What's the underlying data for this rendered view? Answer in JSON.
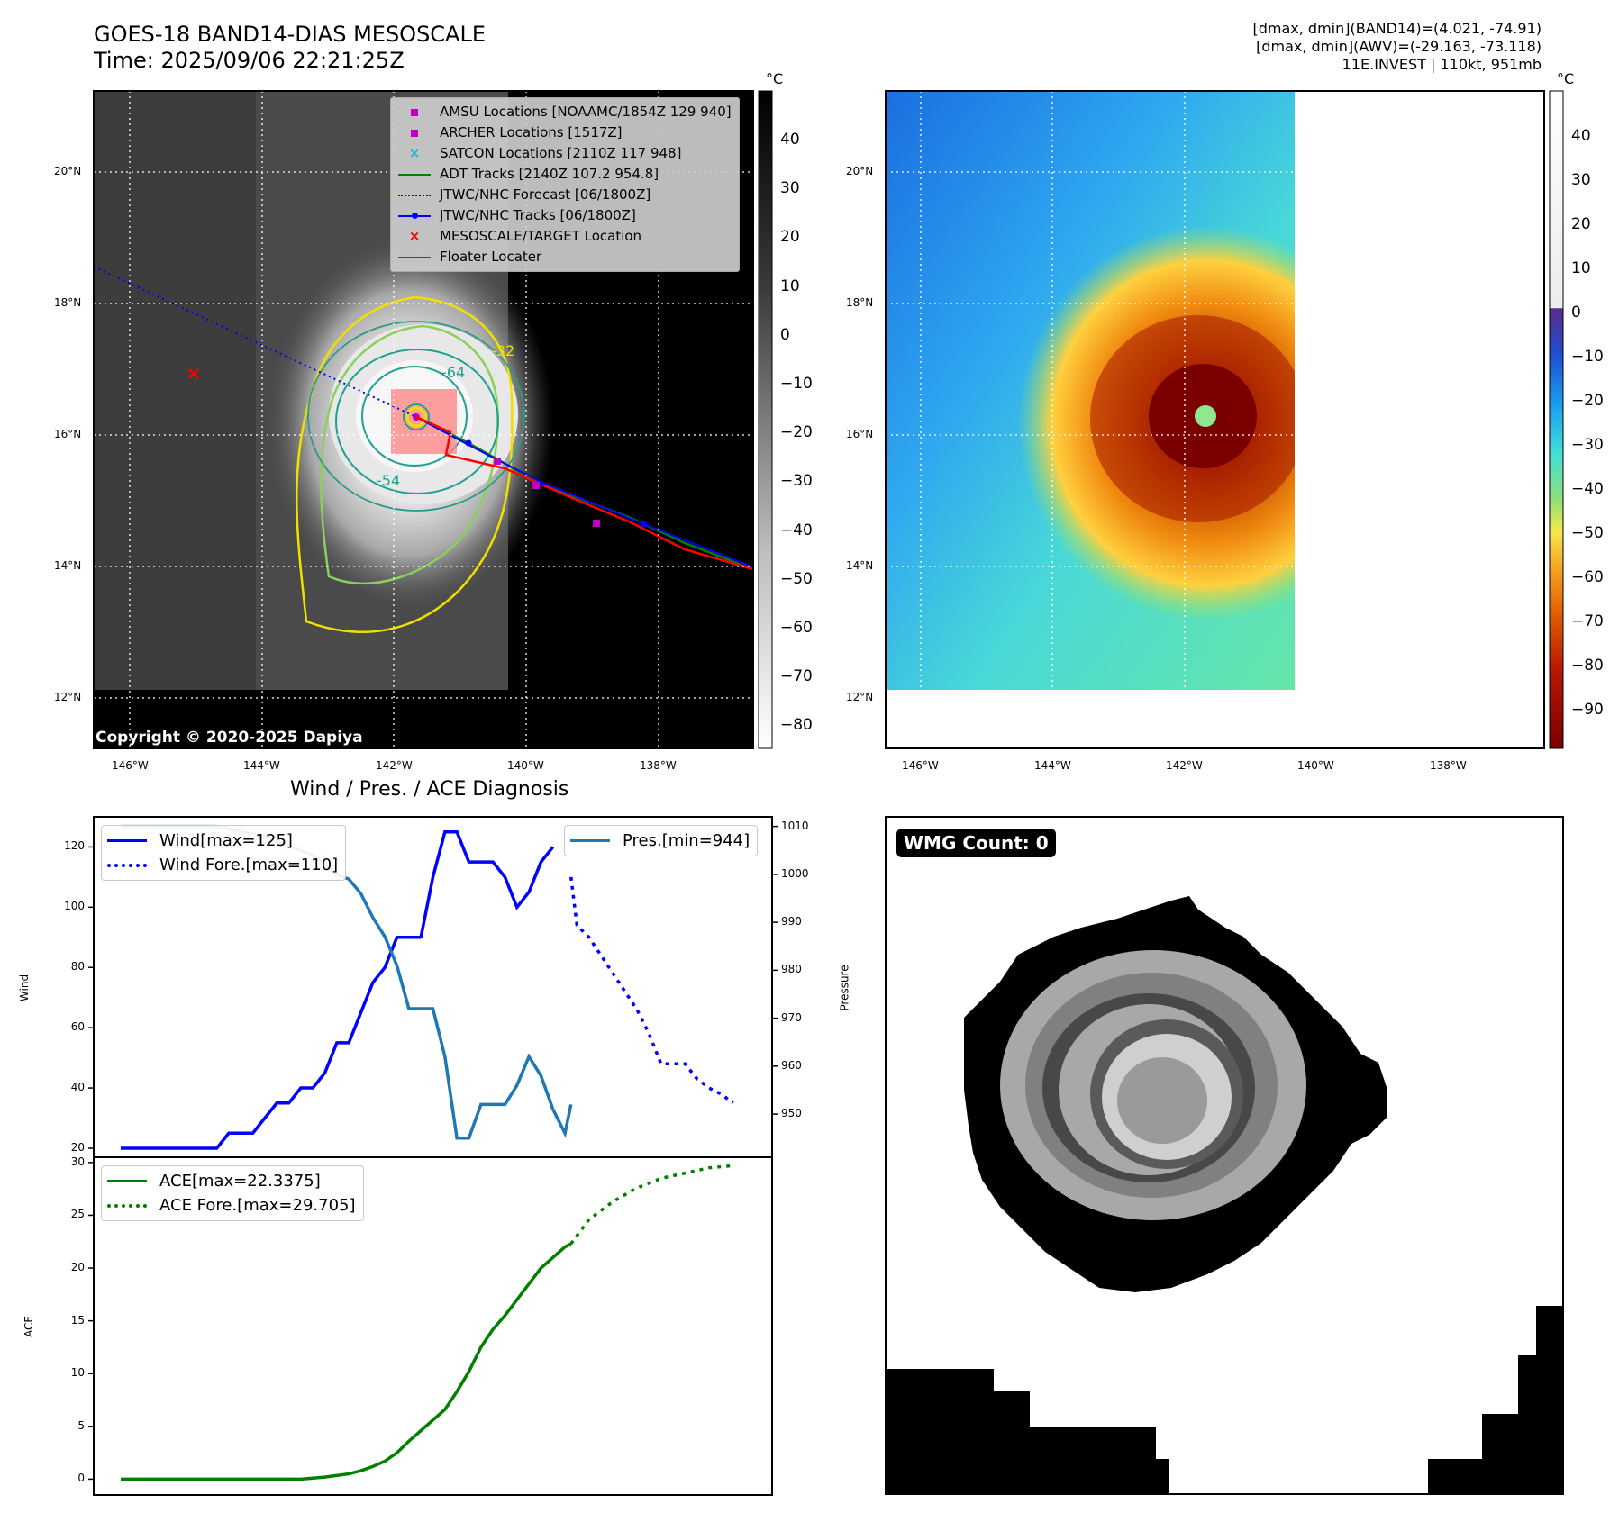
{
  "header": {
    "title_line1": "GOES-18 BAND14-DIAS MESOSCALE",
    "title_line2": "Time: 2025/09/06 22:21:25Z",
    "stats_line1": "[dmax, dmin](BAND14)=(4.021, -74.91)",
    "stats_line2": "[dmax, dmin](AWV)=(-29.163, -73.118)",
    "stats_line3": "11E.INVEST | 110kt, 951mb"
  },
  "map_panel": {
    "lat_labels": [
      "20°N",
      "18°N",
      "16°N",
      "14°N",
      "12°N"
    ],
    "lon_labels": [
      "146°W",
      "144°W",
      "142°W",
      "140°W",
      "138°W"
    ],
    "contour_labels": [
      "-64",
      "-54",
      "-32"
    ],
    "copyright": "Copyright © 2020-2025 Dapiya",
    "legend": [
      {
        "label": "AMSU Locations [NOAAMC/1854Z 129 940]",
        "icon": "square-marker",
        "color": "#c000c0"
      },
      {
        "label": "ARCHER Locations [1517Z]",
        "icon": "square-marker",
        "color": "#c000c0"
      },
      {
        "label": "SATCON Locations [2110Z 117 948]",
        "icon": "x-marker",
        "color": "#17becf"
      },
      {
        "label": "ADT Tracks [2140Z 107.2 954.8]",
        "icon": "solid-line",
        "color": "#008000"
      },
      {
        "label": "JTWC/NHC Forecast [06/1800Z]",
        "icon": "dotted-line",
        "color": "#0000ff"
      },
      {
        "label": "JTWC/NHC Tracks [06/1800Z]",
        "icon": "line-dot",
        "color": "#0000ff"
      },
      {
        "label": "MESOSCALE/TARGET Location",
        "icon": "x-marker",
        "color": "#ff0000"
      },
      {
        "label": "Floater Locater",
        "icon": "solid-line",
        "color": "#ff0000"
      }
    ],
    "colorbar_unit": "°C",
    "colorbar_ticks": [
      "40",
      "30",
      "20",
      "10",
      "0",
      "−10",
      "−20",
      "−30",
      "−40",
      "−50",
      "−60",
      "−70",
      "−80"
    ]
  },
  "awv_panel": {
    "lat_labels": [
      "20°N",
      "18°N",
      "16°N",
      "14°N",
      "12°N"
    ],
    "lon_labels": [
      "146°W",
      "144°W",
      "142°W",
      "140°W",
      "138°W"
    ],
    "colorbar_unit": "°C",
    "colorbar_ticks": [
      "40",
      "30",
      "20",
      "10",
      "0",
      "−10",
      "−20",
      "−30",
      "−40",
      "−50",
      "−60",
      "−70",
      "−80",
      "−90"
    ]
  },
  "wmg_panel": {
    "badge": "WMG Count: 0"
  },
  "chart_data": [
    {
      "type": "line",
      "title": "Wind / Pres. / ACE Diagnosis",
      "xlabel": "",
      "ylabel": "Wind",
      "ylabel_right": "Pressure",
      "ylim": [
        17,
        130
      ],
      "ylim_right": [
        941,
        1012
      ],
      "y_ticks": [
        "120",
        "100",
        "80",
        "60",
        "40",
        "20"
      ],
      "y_ticks_right": [
        "1010",
        "1000",
        "990",
        "980",
        "970",
        "960",
        "950"
      ],
      "series": [
        {
          "name": "Wind[max=125]",
          "axis": "left",
          "color": "#0000ff",
          "style": "solid",
          "x": [
            0,
            1,
            2,
            3,
            4,
            5,
            6,
            7,
            8,
            9,
            10,
            11,
            12,
            13,
            14,
            15,
            16,
            17,
            18,
            19,
            20,
            21,
            22,
            23,
            24,
            25
          ],
          "values": [
            20,
            20,
            20,
            20,
            20,
            20,
            20,
            20,
            20,
            25,
            25,
            25,
            30,
            35,
            35,
            40,
            40,
            45,
            55,
            55,
            65,
            75,
            80,
            90,
            90,
            90
          ]
        },
        {
          "name": "Wind[max=125] (cont.)",
          "axis": "left",
          "color": "#0000ff",
          "style": "solid",
          "x": [
            25,
            26,
            27,
            28,
            29,
            30,
            31,
            32,
            33,
            34,
            35,
            36
          ],
          "values": [
            90,
            110,
            125,
            125,
            115,
            115,
            115,
            110,
            100,
            105,
            115,
            120
          ]
        },
        {
          "name": "Wind Fore.[max=110]",
          "axis": "left",
          "color": "#0000ff",
          "style": "dotted",
          "x": [
            37.5,
            38,
            39,
            40,
            41,
            42,
            43,
            44,
            45,
            46,
            47,
            48,
            49,
            50,
            51
          ],
          "values": [
            110,
            94,
            90,
            84,
            78,
            72,
            66,
            58,
            48,
            48,
            48,
            43,
            40,
            38,
            35
          ]
        },
        {
          "name": "Pres.[min=944]",
          "axis": "right",
          "color": "#1f77b4",
          "style": "solid",
          "x": [
            0,
            4,
            8,
            10,
            12,
            14,
            16,
            18,
            19,
            20,
            21,
            22,
            23,
            24,
            25,
            26,
            27,
            28,
            29,
            30,
            31,
            32,
            33,
            34,
            35,
            36,
            37,
            37.5
          ],
          "values": [
            1010,
            1010,
            1010,
            1009,
            1008,
            1006,
            1004,
            1000,
            999,
            996,
            991,
            987,
            981,
            972,
            972,
            972,
            962,
            945,
            945,
            952,
            952,
            952,
            956,
            962,
            958,
            951,
            946,
            952
          ]
        }
      ]
    },
    {
      "type": "line",
      "xlabel": "",
      "ylabel": "ACE",
      "ylim": [
        -1.5,
        30.5
      ],
      "y_ticks": [
        "30",
        "25",
        "20",
        "15",
        "10",
        "5",
        "0"
      ],
      "series": [
        {
          "name": "ACE[max=22.3375]",
          "color": "#008000",
          "style": "solid",
          "x": [
            0,
            5,
            10,
            13,
            15,
            17,
            19,
            20,
            21,
            22,
            23,
            24,
            25,
            26,
            27,
            28,
            29,
            30,
            31,
            32,
            33,
            34,
            35,
            36,
            37,
            37.5
          ],
          "values": [
            0,
            0,
            0,
            0,
            0,
            0.2,
            0.5,
            0.8,
            1.2,
            1.7,
            2.5,
            3.6,
            4.6,
            5.6,
            6.6,
            8.3,
            10.2,
            12.5,
            14.2,
            15.5,
            17.0,
            18.5,
            20.0,
            21.0,
            22.0,
            22.3
          ]
        },
        {
          "name": "ACE Fore.[max=29.705]",
          "color": "#008000",
          "style": "dotted",
          "x": [
            37.5,
            39,
            41,
            43,
            45,
            47,
            49,
            51
          ],
          "values": [
            22.3,
            24.6,
            26.3,
            27.6,
            28.5,
            29.0,
            29.5,
            29.7
          ]
        }
      ]
    }
  ]
}
